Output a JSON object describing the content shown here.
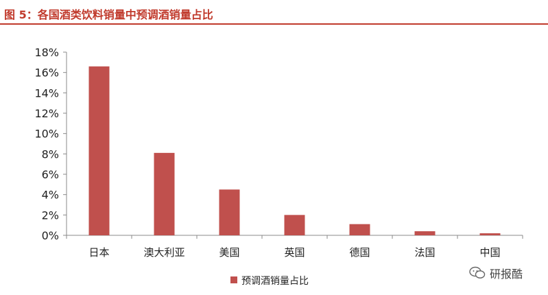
{
  "figure_title": "图 5：各国酒类饮料销量中预调酒销量占比",
  "watermark": {
    "text": "研报酷",
    "icon": "wechat-icon"
  },
  "colors": {
    "bar": "#c0504d",
    "title": "#c0392b",
    "axis": "#888888"
  },
  "chart_data": {
    "type": "bar",
    "title": "",
    "xlabel": "",
    "ylabel": "",
    "categories": [
      "日本",
      "澳大利亚",
      "美国",
      "英国",
      "德国",
      "法国",
      "中国"
    ],
    "series": [
      {
        "name": "预调酒销量占比",
        "values": [
          16.6,
          8.1,
          4.5,
          2.0,
          1.1,
          0.4,
          0.2
        ]
      }
    ],
    "y_ticks": [
      "0%",
      "2%",
      "4%",
      "6%",
      "8%",
      "10%",
      "12%",
      "14%",
      "16%",
      "18%"
    ],
    "ylim": [
      0,
      18
    ],
    "grid": false,
    "legend": "bottom-center"
  }
}
